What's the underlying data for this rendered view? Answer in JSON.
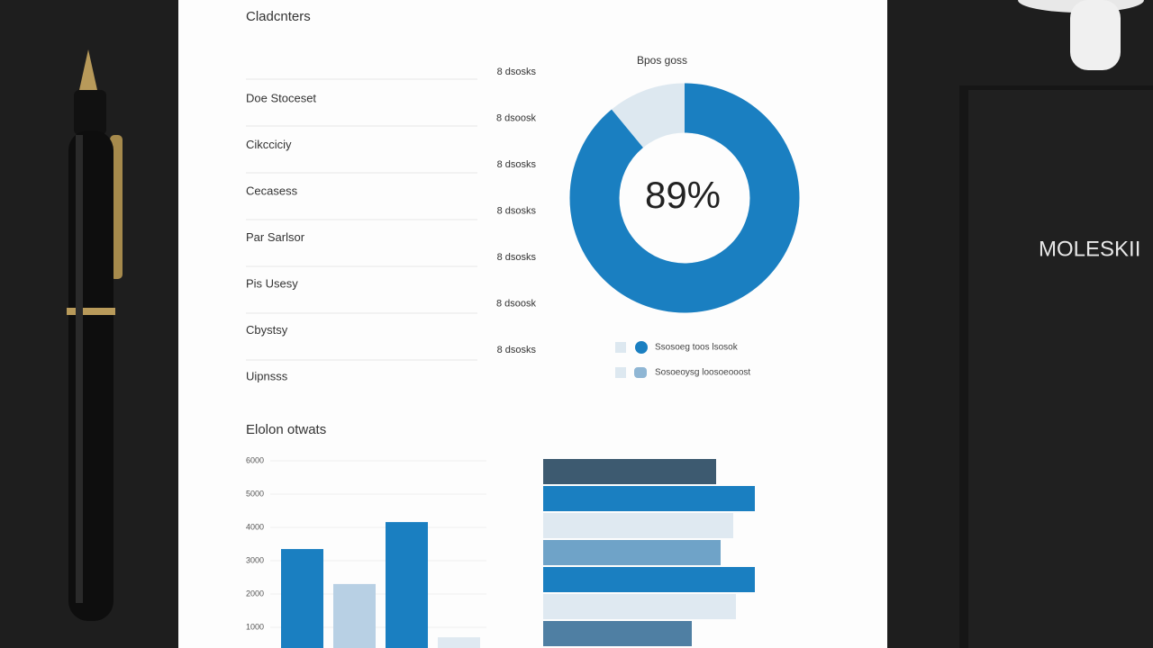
{
  "document": {
    "title": "Cladcnters",
    "rows": [
      {
        "label": "Doe Stoceset",
        "amount": "8 dsosks"
      },
      {
        "label": "Cikcciciy",
        "amount": "8 dsoosk"
      },
      {
        "label": "Cecasess",
        "amount": "8 dsosks"
      },
      {
        "label": "Par Sarlsor",
        "amount": "8 dsosks"
      },
      {
        "label": "Pis Usesy",
        "amount": "8 dsosks"
      },
      {
        "label": "Cbystsy",
        "amount": "8 dsoosk"
      },
      {
        "label": "Uipnsss",
        "amount": "8 dsosks"
      }
    ],
    "donut": {
      "title": "Bpos goss",
      "value": 89,
      "value_label": "89%",
      "color": "#1a7fc1",
      "rest_color": "#dde8f0",
      "legend": [
        "Ssosoeg toos lsosok",
        "Sosoeoysg loosoeooost"
      ]
    }
  },
  "brand": "MOLESKII",
  "chart_data": [
    {
      "type": "bar",
      "title": "Elolon otwats",
      "categories": [
        null,
        null,
        null,
        null
      ],
      "values": [
        3350,
        2300,
        4160,
        700
      ],
      "colors": [
        "#1a7fc1",
        "#b8d0e4",
        "#1a7fc1",
        "#dfe9f1"
      ],
      "ylim": [
        0,
        6000
      ],
      "yticks": [
        1000,
        2000,
        3000,
        4000,
        5000,
        6000
      ],
      "grid": true
    },
    {
      "type": "hbar",
      "categories": [
        null,
        null,
        null,
        null,
        null,
        null,
        null
      ],
      "values": [
        192,
        235,
        211,
        197,
        235,
        214,
        165
      ],
      "colors": [
        "#3d5a70",
        "#1a7fc1",
        "#dfe9f1",
        "#6fa3c8",
        "#1a7fc1",
        "#dfe9f1",
        "#4f7fa3"
      ],
      "xlim": [
        0,
        250
      ]
    }
  ]
}
